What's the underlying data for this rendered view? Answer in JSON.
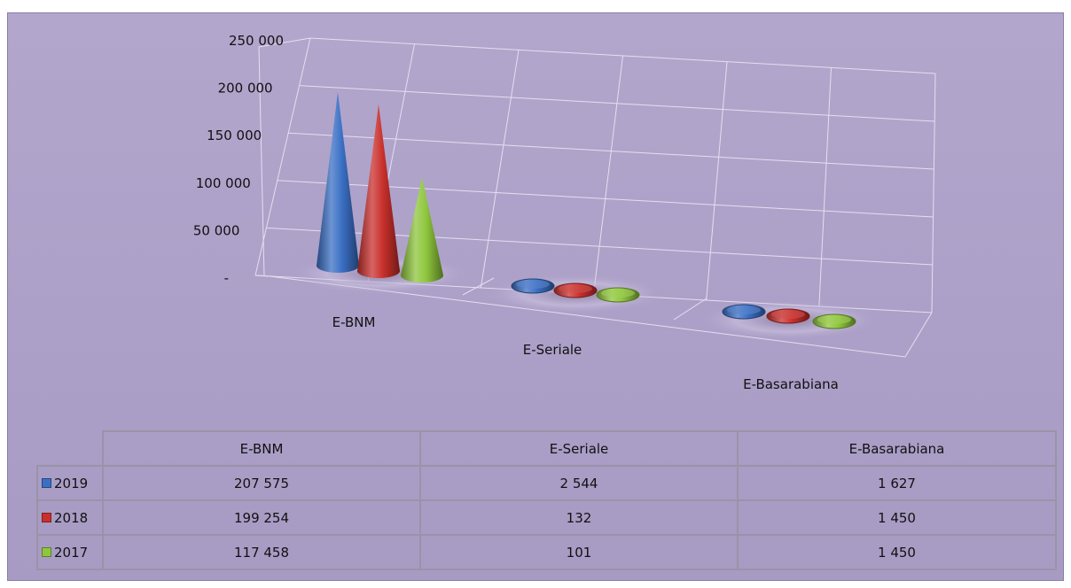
{
  "chart_data": {
    "type": "bar",
    "variant": "3d-cone",
    "categories": [
      "E-BNM",
      "E-Seriale",
      "E-Basarabiana"
    ],
    "series": [
      {
        "name": "2019",
        "color": "#3b6fc4",
        "values": [
          207575,
          2544,
          1627
        ]
      },
      {
        "name": "2018",
        "color": "#c9302c",
        "values": [
          199254,
          132,
          1450
        ]
      },
      {
        "name": "2017",
        "color": "#8fc63c",
        "values": [
          117458,
          101,
          1450
        ]
      }
    ],
    "ylim": [
      0,
      250000
    ],
    "yticks": [
      0,
      50000,
      100000,
      150000,
      200000,
      250000
    ],
    "ytick_labels": [
      "-",
      "50 000",
      "100 000",
      "150 000",
      "200 000",
      "250 000"
    ],
    "grid": true,
    "legend": "data-table",
    "table": {
      "header": [
        "E-BNM",
        "E-Seriale",
        "E-Basarabiana"
      ],
      "rows": [
        {
          "label": "2019",
          "cells": [
            "207 575",
            "2 544",
            "1 627"
          ]
        },
        {
          "label": "2018",
          "cells": [
            "199 254",
            "132",
            "1 450"
          ]
        },
        {
          "label": "2017",
          "cells": [
            "117 458",
            "101",
            "1 450"
          ]
        }
      ]
    }
  }
}
